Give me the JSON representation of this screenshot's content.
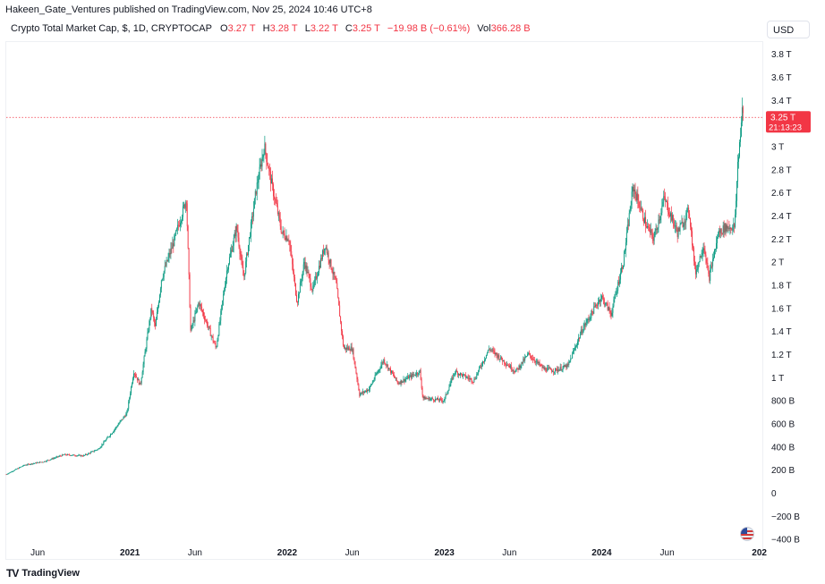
{
  "header": {
    "publisher": "Hakeen_Gate_Ventures published on TradingView.com, Nov 25, 2024 10:46 UTC+8",
    "symbol": "Crypto Total Market Cap, $, 1D, CRYPTOCAP",
    "open_label": "O",
    "open_value": "3.27 T",
    "high_label": "H",
    "high_value": "3.28 T",
    "low_label": "L",
    "low_value": "3.22 T",
    "close_label": "C",
    "close_value": "3.25 T",
    "change": "−19.98 B (−0.61%)",
    "volume_label": "Vol",
    "volume_value": "366.28 B"
  },
  "currency": "USD",
  "brand": {
    "logo": "TV",
    "name": "TradingView"
  },
  "colors": {
    "up": "#089981",
    "down": "#f23645",
    "grid": "#eef0f4",
    "axis_text": "#131722",
    "price_line": "#f23645"
  },
  "chart_data": {
    "type": "line",
    "title": "Crypto Total Market Cap, $, 1D, CRYPTOCAP",
    "style": "candlestick",
    "xlabel": "",
    "ylabel": "",
    "y_unit": "USD",
    "ylim": [
      -420,
      4050
    ],
    "grid": false,
    "y_ticks": [
      "−400 B",
      "−200 B",
      "0",
      "200 B",
      "400 B",
      "600 B",
      "800 B",
      "1 T",
      "1.2 T",
      "1.4 T",
      "1.6 T",
      "1.8 T",
      "2 T",
      "2.2 T",
      "2.4 T",
      "2.6 T",
      "2.8 T",
      "3 T",
      "3.2 T",
      "3.4 T",
      "3.6 T",
      "3.8 T"
    ],
    "y_tick_values": [
      -400,
      -200,
      0,
      200,
      400,
      600,
      800,
      1000,
      1200,
      1400,
      1600,
      1800,
      2000,
      2200,
      2400,
      2600,
      2800,
      3000,
      3200,
      3400,
      3600,
      3800
    ],
    "x_ticks": [
      "Jun",
      "2021",
      "Jun",
      "2022",
      "Jun",
      "2023",
      "Jun",
      "2024",
      "Jun",
      "202"
    ],
    "x_tick_dates": [
      "2020-06-01",
      "2021-01-01",
      "2021-06-01",
      "2022-01-01",
      "2022-06-01",
      "2023-01-01",
      "2023-06-01",
      "2024-01-01",
      "2024-06-01",
      "2025-01-01"
    ],
    "x_range": [
      "2020-03-20",
      "2025-01-08"
    ],
    "last_price_label": "3.25 T",
    "countdown": "21:13:23",
    "last_price": 3250,
    "series": [
      {
        "values_in": "billions USD",
        "points": [
          [
            "2020-03-20",
            160
          ],
          [
            "2020-05-01",
            240
          ],
          [
            "2020-06-15",
            270
          ],
          [
            "2020-08-01",
            330
          ],
          [
            "2020-09-15",
            320
          ],
          [
            "2020-10-20",
            380
          ],
          [
            "2020-11-20",
            520
          ],
          [
            "2020-12-25",
            690
          ],
          [
            "2021-01-10",
            1050
          ],
          [
            "2021-01-25",
            930
          ],
          [
            "2021-02-20",
            1600
          ],
          [
            "2021-03-01",
            1430
          ],
          [
            "2021-03-15",
            1850
          ],
          [
            "2021-04-15",
            2200
          ],
          [
            "2021-05-12",
            2550
          ],
          [
            "2021-05-22",
            1400
          ],
          [
            "2021-06-10",
            1650
          ],
          [
            "2021-07-20",
            1250
          ],
          [
            "2021-08-15",
            1950
          ],
          [
            "2021-09-06",
            2300
          ],
          [
            "2021-09-22",
            1850
          ],
          [
            "2021-10-20",
            2600
          ],
          [
            "2021-11-09",
            3000
          ],
          [
            "2021-11-30",
            2600
          ],
          [
            "2021-12-20",
            2250
          ],
          [
            "2022-01-05",
            2200
          ],
          [
            "2022-01-24",
            1650
          ],
          [
            "2022-02-10",
            2000
          ],
          [
            "2022-03-01",
            1750
          ],
          [
            "2022-03-30",
            2150
          ],
          [
            "2022-04-25",
            1800
          ],
          [
            "2022-05-12",
            1250
          ],
          [
            "2022-06-01",
            1250
          ],
          [
            "2022-06-18",
            850
          ],
          [
            "2022-07-10",
            900
          ],
          [
            "2022-08-13",
            1150
          ],
          [
            "2022-09-15",
            950
          ],
          [
            "2022-11-05",
            1050
          ],
          [
            "2022-11-12",
            820
          ],
          [
            "2022-12-31",
            800
          ],
          [
            "2023-01-25",
            1050
          ],
          [
            "2023-03-10",
            970
          ],
          [
            "2023-04-15",
            1250
          ],
          [
            "2023-06-15",
            1050
          ],
          [
            "2023-07-15",
            1200
          ],
          [
            "2023-08-20",
            1070
          ],
          [
            "2023-09-15",
            1060
          ],
          [
            "2023-10-15",
            1100
          ],
          [
            "2023-11-15",
            1400
          ],
          [
            "2023-12-31",
            1700
          ],
          [
            "2024-01-23",
            1550
          ],
          [
            "2024-02-20",
            2000
          ],
          [
            "2024-03-14",
            2650
          ],
          [
            "2024-04-15",
            2300
          ],
          [
            "2024-05-01",
            2200
          ],
          [
            "2024-05-25",
            2550
          ],
          [
            "2024-06-25",
            2250
          ],
          [
            "2024-07-22",
            2450
          ],
          [
            "2024-08-05",
            1900
          ],
          [
            "2024-08-25",
            2150
          ],
          [
            "2024-09-06",
            1850
          ],
          [
            "2024-09-28",
            2250
          ],
          [
            "2024-10-15",
            2300
          ],
          [
            "2024-11-05",
            2300
          ],
          [
            "2024-11-12",
            2850
          ],
          [
            "2024-11-22",
            3300
          ],
          [
            "2024-11-25",
            3250
          ]
        ]
      }
    ]
  }
}
